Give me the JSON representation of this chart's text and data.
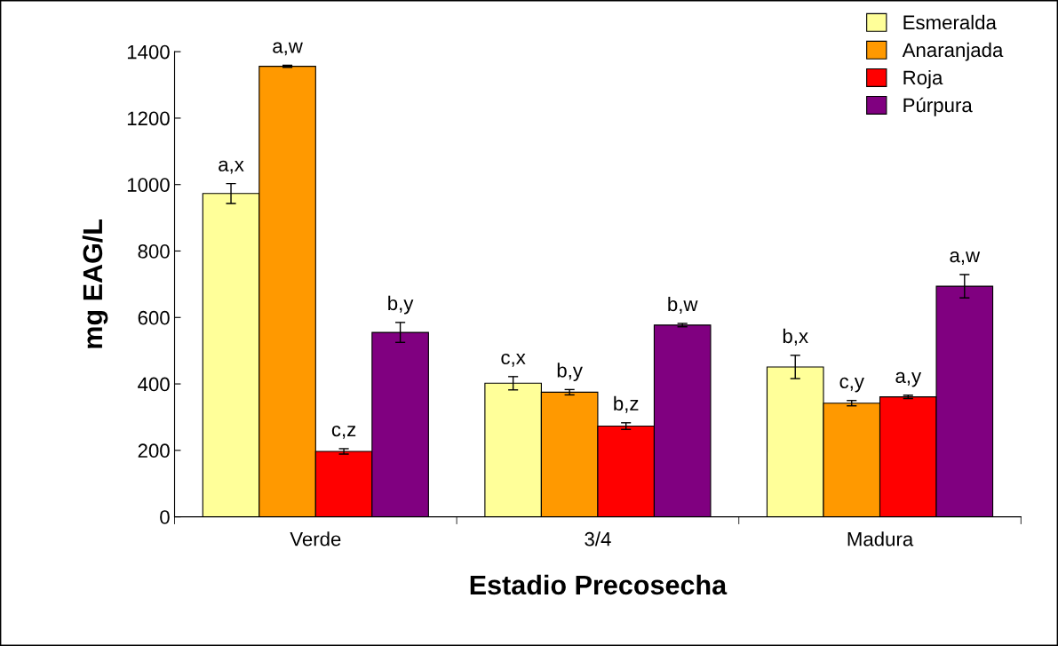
{
  "chart_data": {
    "type": "bar",
    "xlabel": "Estadio Precosecha",
    "ylabel": "mg EAG/L",
    "categories": [
      "Verde",
      "3/4",
      "Madura"
    ],
    "series": [
      {
        "name": "Esmeralda",
        "color": "#ffff99",
        "values": [
          973,
          402,
          451
        ],
        "errors": [
          30,
          20,
          35
        ],
        "value_labels": [
          "a,x",
          "c,x",
          "b,x"
        ]
      },
      {
        "name": "Anaranjada",
        "color": "#ff9900",
        "values": [
          1356,
          375,
          342
        ],
        "errors": [
          3,
          8,
          8
        ],
        "value_labels": [
          "a,w",
          "b,y",
          "c,y"
        ]
      },
      {
        "name": "Roja",
        "color": "#ff0000",
        "values": [
          197,
          273,
          361
        ],
        "errors": [
          8,
          10,
          5
        ],
        "value_labels": [
          "c,z",
          "b,z",
          "a,y"
        ]
      },
      {
        "name": "Púrpura",
        "color": "#800080",
        "values": [
          555,
          577,
          694
        ],
        "errors": [
          30,
          5,
          35
        ],
        "value_labels": [
          "b,y",
          "b,w",
          "a,w"
        ]
      }
    ],
    "ylim": [
      0,
      1400
    ],
    "yticks": [
      0,
      200,
      400,
      600,
      800,
      1000,
      1200,
      1400
    ],
    "grid": false,
    "legend": "top right"
  }
}
